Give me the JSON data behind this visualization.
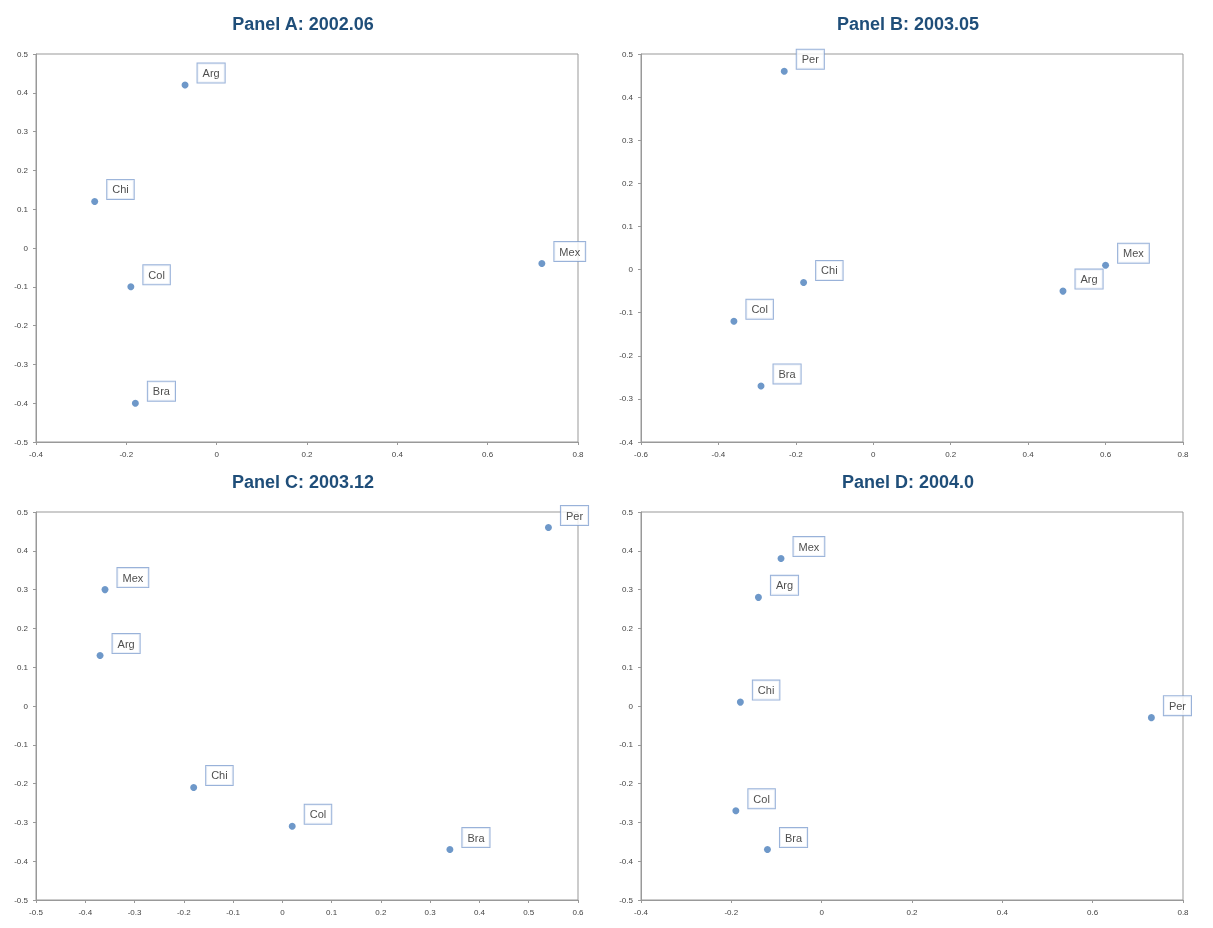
{
  "chart_data": [
    {
      "type": "scatter",
      "title": "Panel A: 2002.06",
      "xlim": [
        -0.4,
        0.8
      ],
      "xticks": [
        -0.4,
        -0.2,
        0,
        0.2,
        0.4,
        0.6,
        0.8
      ],
      "ylim": [
        -0.5,
        0.5
      ],
      "yticks": [
        -0.5,
        -0.4,
        -0.3,
        -0.2,
        -0.1,
        0,
        0.1,
        0.2,
        0.3,
        0.4,
        0.5
      ],
      "grid": false,
      "legend": false,
      "marker": "circle",
      "series": [
        {
          "name": "Arg",
          "color": "#4a7ebb",
          "x": [
            -0.07
          ],
          "values": [
            0.42
          ]
        },
        {
          "name": "Chi",
          "color": "#4a7ebb",
          "x": [
            -0.27
          ],
          "values": [
            0.12
          ]
        },
        {
          "name": "Col",
          "color": "#4a7ebb",
          "x": [
            -0.19
          ],
          "values": [
            -0.1
          ]
        },
        {
          "name": "Bra",
          "color": "#4a7ebb",
          "x": [
            -0.18
          ],
          "values": [
            -0.4
          ]
        },
        {
          "name": "Mex",
          "color": "#4a7ebb",
          "x": [
            0.72
          ],
          "values": [
            -0.04
          ]
        }
      ]
    },
    {
      "type": "scatter",
      "title": "Panel B: 2003.05",
      "xlim": [
        -0.6,
        0.8
      ],
      "xticks": [
        -0.6,
        -0.4,
        -0.2,
        0,
        0.2,
        0.4,
        0.6,
        0.8
      ],
      "ylim": [
        -0.4,
        0.5
      ],
      "yticks": [
        -0.4,
        -0.3,
        -0.2,
        -0.1,
        0,
        0.1,
        0.2,
        0.3,
        0.4,
        0.5
      ],
      "grid": false,
      "legend": false,
      "marker": "circle",
      "series": [
        {
          "name": "Per",
          "color": "#4a7ebb",
          "x": [
            -0.23
          ],
          "values": [
            0.46
          ]
        },
        {
          "name": "Chi",
          "color": "#4a7ebb",
          "x": [
            -0.18
          ],
          "values": [
            -0.03
          ]
        },
        {
          "name": "Col",
          "color": "#4a7ebb",
          "x": [
            -0.36
          ],
          "values": [
            -0.12
          ]
        },
        {
          "name": "Bra",
          "color": "#4a7ebb",
          "x": [
            -0.29
          ],
          "values": [
            -0.27
          ]
        },
        {
          "name": "Arg",
          "color": "#4a7ebb",
          "x": [
            0.49
          ],
          "values": [
            -0.05
          ]
        },
        {
          "name": "Mex",
          "color": "#4a7ebb",
          "x": [
            0.6
          ],
          "values": [
            0.01
          ]
        }
      ]
    },
    {
      "type": "scatter",
      "title": "Panel C: 2003.12",
      "xlim": [
        -0.5,
        0.6
      ],
      "xticks": [
        -0.5,
        -0.4,
        -0.3,
        -0.2,
        -0.1,
        0,
        0.1,
        0.2,
        0.3,
        0.4,
        0.5,
        0.6
      ],
      "ylim": [
        -0.5,
        0.5
      ],
      "yticks": [
        -0.5,
        -0.4,
        -0.3,
        -0.2,
        -0.1,
        0,
        0.1,
        0.2,
        0.3,
        0.4,
        0.5
      ],
      "grid": false,
      "legend": false,
      "marker": "circle",
      "series": [
        {
          "name": "Per",
          "color": "#4a7ebb",
          "x": [
            0.54
          ],
          "values": [
            0.46
          ]
        },
        {
          "name": "Mex",
          "color": "#4a7ebb",
          "x": [
            -0.36
          ],
          "values": [
            0.3
          ]
        },
        {
          "name": "Arg",
          "color": "#4a7ebb",
          "x": [
            -0.37
          ],
          "values": [
            0.13
          ]
        },
        {
          "name": "Chi",
          "color": "#4a7ebb",
          "x": [
            -0.18
          ],
          "values": [
            -0.21
          ]
        },
        {
          "name": "Col",
          "color": "#4a7ebb",
          "x": [
            0.02
          ],
          "values": [
            -0.31
          ]
        },
        {
          "name": "Bra",
          "color": "#4a7ebb",
          "x": [
            0.34
          ],
          "values": [
            -0.37
          ]
        }
      ]
    },
    {
      "type": "scatter",
      "title": "Panel D: 2004.0",
      "xlim": [
        -0.4,
        0.8
      ],
      "xticks": [
        -0.4,
        -0.2,
        0,
        0.2,
        0.4,
        0.6,
        0.8
      ],
      "ylim": [
        -0.5,
        0.5
      ],
      "yticks": [
        -0.5,
        -0.4,
        -0.3,
        -0.2,
        -0.1,
        0,
        0.1,
        0.2,
        0.3,
        0.4,
        0.5
      ],
      "grid": false,
      "legend": false,
      "marker": "circle",
      "series": [
        {
          "name": "Mex",
          "color": "#4a7ebb",
          "x": [
            -0.09
          ],
          "values": [
            0.38
          ]
        },
        {
          "name": "Arg",
          "color": "#4a7ebb",
          "x": [
            -0.14
          ],
          "values": [
            0.28
          ]
        },
        {
          "name": "Chi",
          "color": "#4a7ebb",
          "x": [
            -0.18
          ],
          "values": [
            0.01
          ]
        },
        {
          "name": "Per",
          "color": "#4a7ebb",
          "x": [
            0.73
          ],
          "values": [
            -0.03
          ]
        },
        {
          "name": "Col",
          "color": "#4a7ebb",
          "x": [
            -0.19
          ],
          "values": [
            -0.27
          ]
        },
        {
          "name": "Bra",
          "color": "#4a7ebb",
          "x": [
            -0.12
          ],
          "values": [
            -0.37
          ]
        }
      ]
    }
  ]
}
